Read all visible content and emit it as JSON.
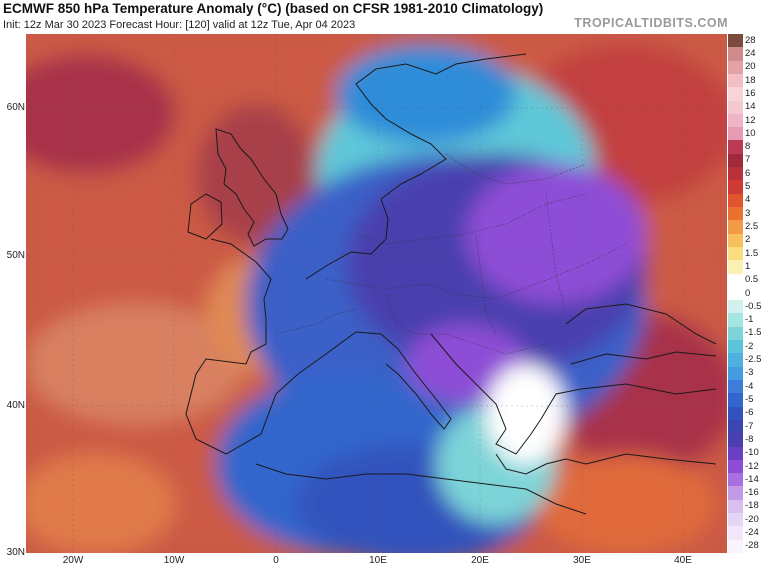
{
  "header": {
    "title": "ECMWF 850 hPa Temperature Anomaly (°C) (based on CFSR 1981-2010 Climatology)",
    "subtitle": "Init: 12z Mar 30 2023   Forecast Hour: [120]   valid at 12z Tue, Apr 04 2023",
    "brand": "TROPICALTIDBITS.COM"
  },
  "axes": {
    "lat_labels": [
      "60N",
      "50N",
      "40N",
      "30N"
    ],
    "lon_labels": [
      "20W",
      "10W",
      "0",
      "10E",
      "20E",
      "30E",
      "40E"
    ]
  },
  "colorbar": {
    "labels": [
      "28",
      "24",
      "20",
      "18",
      "16",
      "14",
      "12",
      "10",
      "8",
      "7",
      "6",
      "5",
      "4",
      "3",
      "2.5",
      "2",
      "1.5",
      "1",
      "0.5",
      "0",
      "-0.5",
      "-1",
      "-1.5",
      "-2",
      "-2.5",
      "-3",
      "-4",
      "-5",
      "-6",
      "-7",
      "-8",
      "-10",
      "-12",
      "-14",
      "-16",
      "-18",
      "-20",
      "-24",
      "-28"
    ],
    "colors": [
      "#7a4a3a",
      "#d08a8a",
      "#e3a3a6",
      "#f1bfc4",
      "#f7d4d9",
      "#f4c8d1",
      "#efb5c6",
      "#e69bb3",
      "#bc3a55",
      "#9e2a3a",
      "#b8303a",
      "#cf3b34",
      "#e0552d",
      "#eb7130",
      "#f29a45",
      "#f8c05c",
      "#f9dd7f",
      "#fbf1b2",
      "#ffffff",
      "#ffffff",
      "#d0f1ee",
      "#a6e6e1",
      "#7dd4d8",
      "#5dc4d9",
      "#4fb0e0",
      "#459be0",
      "#3d7fd8",
      "#3366cc",
      "#3253bd",
      "#3b46b0",
      "#4a3fae",
      "#6a3fc2",
      "#8e4dd6",
      "#a86fe0",
      "#c29ae8",
      "#d8bff0",
      "#e6d4f5",
      "#f1e6fa",
      "#faf4fd"
    ]
  }
}
